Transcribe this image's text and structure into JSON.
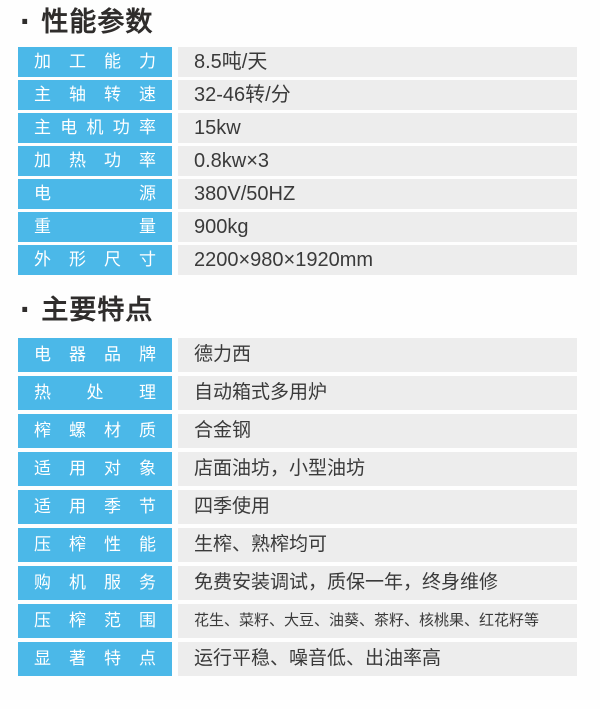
{
  "theme": {
    "accent": "#4bb8e8",
    "value-bg": "#ededed",
    "label-text": "#ffffff",
    "text": "#3a3a3a",
    "title": "#2f2d2c",
    "page-bg": "#fefefe"
  },
  "sections": [
    {
      "bullet": "·",
      "title": "性能参数",
      "rows": [
        {
          "label": "加工能力",
          "value": "8.5吨/天"
        },
        {
          "label": "主轴转速",
          "value": "32-46转/分"
        },
        {
          "label": "主电机功率",
          "value": "15kw"
        },
        {
          "label": "加热功率",
          "value": "0.8kw×3"
        },
        {
          "label": "电源",
          "value": "380V/50HZ"
        },
        {
          "label": "重量",
          "value": "900kg"
        },
        {
          "label": "外形尺寸",
          "value": "2200×980×1920mm"
        }
      ]
    },
    {
      "bullet": "·",
      "title": "主要特点",
      "rows": [
        {
          "label": "电器品牌",
          "value": "德力西"
        },
        {
          "label": "热处理",
          "value": "自动箱式多用炉"
        },
        {
          "label": "榨螺材质",
          "value": "合金钢"
        },
        {
          "label": "适用对象",
          "value": "店面油坊，小型油坊"
        },
        {
          "label": "适用季节",
          "value": "四季使用"
        },
        {
          "label": "压榨性能",
          "value": "生榨、熟榨均可"
        },
        {
          "label": "购机服务",
          "value": "免费安装调试，质保一年，终身维修"
        },
        {
          "label": "压榨范围",
          "value": "花生、菜籽、大豆、油葵、茶籽、核桃果、红花籽等"
        },
        {
          "label": "显著特点",
          "value": "运行平稳、噪音低、出油率高"
        }
      ]
    }
  ]
}
